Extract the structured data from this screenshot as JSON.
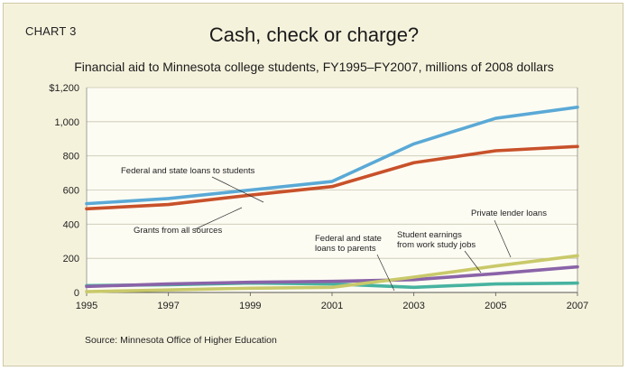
{
  "chart_label": "CHART 3",
  "title": "Cash, check or charge?",
  "subtitle": "Financial aid to Minnesota college students, FY1995–FY2007, millions of 2008 dollars",
  "source": "Source: Minnesota Office of Higher Education",
  "chart_data": {
    "type": "line",
    "x": [
      1995,
      1997,
      1999,
      2001,
      2003,
      2005,
      2007
    ],
    "ylim": [
      0,
      1200
    ],
    "yticks": [
      "0",
      "200",
      "400",
      "600",
      "800",
      "1,000",
      "$1,200"
    ],
    "grid": true,
    "series": [
      {
        "name": "Federal and state loans to students",
        "color": "#5aa9d6",
        "values": [
          520,
          550,
          600,
          650,
          870,
          1020,
          1085
        ]
      },
      {
        "name": "Grants from all sources",
        "color": "#c8512a",
        "values": [
          490,
          515,
          570,
          620,
          760,
          830,
          855
        ]
      },
      {
        "name": "Private lender loans",
        "color": "#c9c96a",
        "values": [
          5,
          15,
          25,
          30,
          90,
          155,
          215
        ]
      },
      {
        "name": "Student earnings from work study jobs",
        "color": "#8a63a8",
        "values": [
          35,
          50,
          60,
          65,
          75,
          110,
          150
        ]
      },
      {
        "name": "Federal and state loans to parents",
        "color": "#47b3a0",
        "values": [
          40,
          45,
          55,
          50,
          30,
          50,
          55
        ]
      }
    ],
    "annotations": [
      {
        "lines": [
          "Federal and state loans to students"
        ]
      },
      {
        "lines": [
          "Grants from all sources"
        ]
      },
      {
        "lines": [
          "Private lender loans"
        ]
      },
      {
        "lines": [
          "Student earnings",
          "from work study jobs"
        ]
      },
      {
        "lines": [
          "Federal and state",
          "loans to parents"
        ]
      }
    ]
  }
}
